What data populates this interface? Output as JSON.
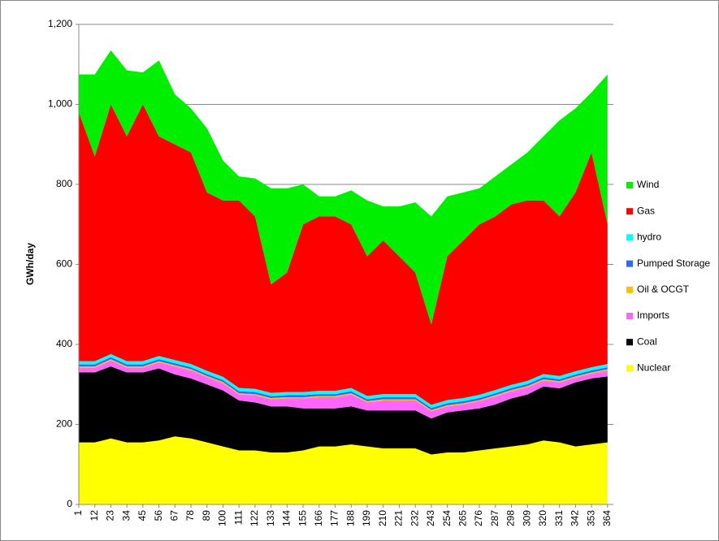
{
  "chart_data": {
    "type": "stacked-area",
    "y_label": "GWh/day",
    "x": [
      1,
      12,
      23,
      34,
      45,
      56,
      67,
      78,
      89,
      100,
      111,
      122,
      133,
      144,
      155,
      166,
      177,
      188,
      199,
      210,
      221,
      232,
      243,
      254,
      265,
      276,
      287,
      298,
      309,
      320,
      331,
      342,
      353,
      364
    ],
    "xlim": [
      1,
      368
    ],
    "xticks": [
      1,
      12,
      23,
      34,
      45,
      56,
      67,
      78,
      89,
      100,
      111,
      122,
      133,
      144,
      155,
      166,
      177,
      188,
      199,
      210,
      221,
      232,
      243,
      254,
      265,
      276,
      287,
      298,
      309,
      320,
      331,
      342,
      353,
      364
    ],
    "ylim": [
      0,
      1200
    ],
    "yticks": [
      0,
      200,
      400,
      600,
      800,
      {
        "value": 1000,
        "label": "1,000"
      },
      {
        "value": 1200,
        "label": "1,200"
      }
    ],
    "grid": true,
    "legend": "right",
    "series": [
      {
        "name": "Nuclear",
        "color": "#ffff00",
        "values": [
          155,
          155,
          165,
          155,
          155,
          160,
          170,
          165,
          155,
          145,
          135,
          135,
          130,
          130,
          135,
          145,
          145,
          150,
          145,
          140,
          140,
          140,
          125,
          130,
          130,
          135,
          140,
          145,
          150,
          160,
          155,
          145,
          150,
          155
        ]
      },
      {
        "name": "Coal",
        "color": "#000000",
        "values": [
          175,
          175,
          180,
          175,
          175,
          180,
          155,
          150,
          145,
          140,
          125,
          120,
          115,
          115,
          105,
          95,
          95,
          95,
          90,
          95,
          95,
          95,
          90,
          100,
          105,
          105,
          110,
          120,
          125,
          135,
          135,
          160,
          165,
          165
        ]
      },
      {
        "name": "Imports",
        "color": "#ff66ff",
        "values": [
          12,
          12,
          15,
          12,
          12,
          15,
          20,
          20,
          18,
          18,
          15,
          18,
          18,
          20,
          25,
          28,
          28,
          30,
          20,
          25,
          25,
          25,
          18,
          15,
          15,
          18,
          20,
          18,
          18,
          15,
          15,
          12,
          12,
          15
        ]
      },
      {
        "name": "Oil & OCGT",
        "color": "#ffc000",
        "values": [
          3,
          3,
          3,
          3,
          3,
          3,
          3,
          3,
          3,
          3,
          3,
          3,
          3,
          3,
          3,
          3,
          3,
          3,
          3,
          3,
          3,
          3,
          3,
          3,
          3,
          3,
          3,
          3,
          3,
          3,
          3,
          3,
          3,
          3
        ]
      },
      {
        "name": "Pumped Storage",
        "color": "#3366ff",
        "values": [
          5,
          5,
          5,
          5,
          5,
          5,
          5,
          5,
          5,
          5,
          5,
          5,
          5,
          5,
          5,
          5,
          5,
          5,
          5,
          5,
          5,
          5,
          5,
          5,
          5,
          5,
          5,
          5,
          5,
          5,
          5,
          5,
          5,
          5
        ]
      },
      {
        "name": "hydro",
        "color": "#00ffff",
        "values": [
          8,
          8,
          8,
          8,
          8,
          8,
          8,
          8,
          8,
          8,
          8,
          8,
          8,
          8,
          8,
          8,
          8,
          8,
          8,
          8,
          8,
          8,
          8,
          8,
          8,
          8,
          8,
          8,
          8,
          8,
          8,
          8,
          8,
          8
        ]
      },
      {
        "name": "Gas",
        "color": "#ff0000",
        "values": [
          622,
          512,
          624,
          562,
          642,
          549,
          539,
          529,
          446,
          441,
          469,
          431,
          271,
          299,
          419,
          436,
          436,
          409,
          349,
          384,
          344,
          304,
          201,
          359,
          394,
          426,
          434,
          451,
          451,
          434,
          399,
          447,
          537,
          349
        ]
      },
      {
        "name": "Wind",
        "color": "#00ee00",
        "values": [
          95,
          205,
          135,
          165,
          80,
          190,
          125,
          110,
          160,
          100,
          60,
          95,
          240,
          210,
          100,
          50,
          50,
          85,
          140,
          85,
          125,
          175,
          270,
          150,
          120,
          90,
          100,
          100,
          120,
          160,
          240,
          210,
          150,
          375
        ]
      }
    ]
  }
}
